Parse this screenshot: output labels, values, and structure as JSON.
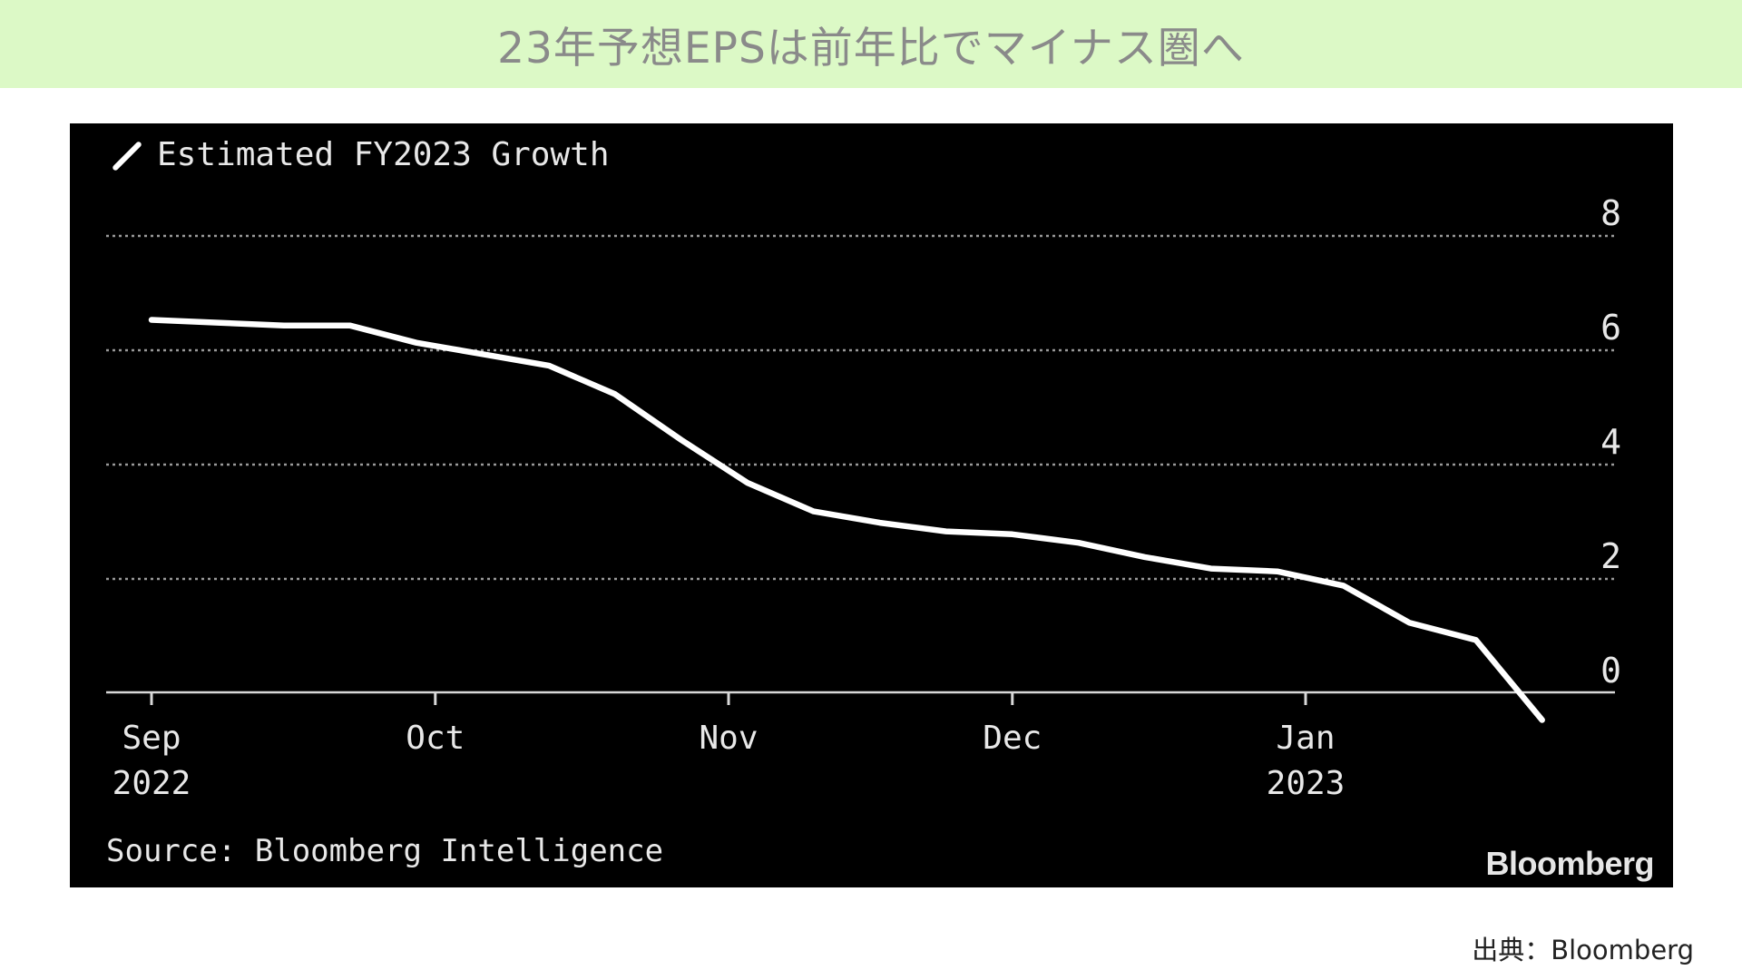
{
  "header": {
    "title": "23年予想EPSは前年比でマイナス圏へ"
  },
  "footer": {
    "credit": "出典：Bloomberg"
  },
  "colors": {
    "banner_bg": "#dcf9c6",
    "chart_bg": "#000000",
    "line": "#ffffff",
    "grid": "#9a9a9a"
  },
  "chart_data": {
    "type": "line",
    "title": "",
    "legend": "Estimated FY2023 Growth",
    "source": "Source: Bloomberg Intelligence",
    "brand": "Bloomberg",
    "xlabel": "",
    "ylabel": "",
    "y_axis_side": "right",
    "grid": "horizontal dotted",
    "ylim": [
      -0.6,
      8
    ],
    "yticks": [
      8,
      6,
      4,
      2,
      0
    ],
    "x_ticks": [
      {
        "date": "2022-09-01",
        "label_top": "Sep",
        "label_bottom": "2022"
      },
      {
        "date": "2022-10-01",
        "label_top": "Oct",
        "label_bottom": ""
      },
      {
        "date": "2022-11-01",
        "label_top": "Nov",
        "label_bottom": ""
      },
      {
        "date": "2022-12-01",
        "label_top": "Dec",
        "label_bottom": ""
      },
      {
        "date": "2023-01-01",
        "label_top": "Jan",
        "label_bottom": "2023"
      }
    ],
    "xlim": [
      "2022-09-01",
      "2023-02-01"
    ],
    "series": [
      {
        "name": "Estimated FY2023 Growth",
        "points": [
          {
            "x": "2022-09-01",
            "y": 6.5
          },
          {
            "x": "2022-09-08",
            "y": 6.45
          },
          {
            "x": "2022-09-15",
            "y": 6.4
          },
          {
            "x": "2022-09-22",
            "y": 6.4
          },
          {
            "x": "2022-09-29",
            "y": 6.1
          },
          {
            "x": "2022-10-06",
            "y": 5.9
          },
          {
            "x": "2022-10-13",
            "y": 5.7
          },
          {
            "x": "2022-10-20",
            "y": 5.2
          },
          {
            "x": "2022-10-27",
            "y": 4.4
          },
          {
            "x": "2022-11-03",
            "y": 3.65
          },
          {
            "x": "2022-11-10",
            "y": 3.15
          },
          {
            "x": "2022-11-17",
            "y": 2.95
          },
          {
            "x": "2022-11-24",
            "y": 2.8
          },
          {
            "x": "2022-12-01",
            "y": 2.75
          },
          {
            "x": "2022-12-08",
            "y": 2.6
          },
          {
            "x": "2022-12-15",
            "y": 2.35
          },
          {
            "x": "2022-12-22",
            "y": 2.15
          },
          {
            "x": "2022-12-29",
            "y": 2.1
          },
          {
            "x": "2023-01-05",
            "y": 1.85
          },
          {
            "x": "2023-01-12",
            "y": 1.2
          },
          {
            "x": "2023-01-19",
            "y": 0.9
          },
          {
            "x": "2023-01-26",
            "y": -0.5
          }
        ]
      }
    ]
  }
}
